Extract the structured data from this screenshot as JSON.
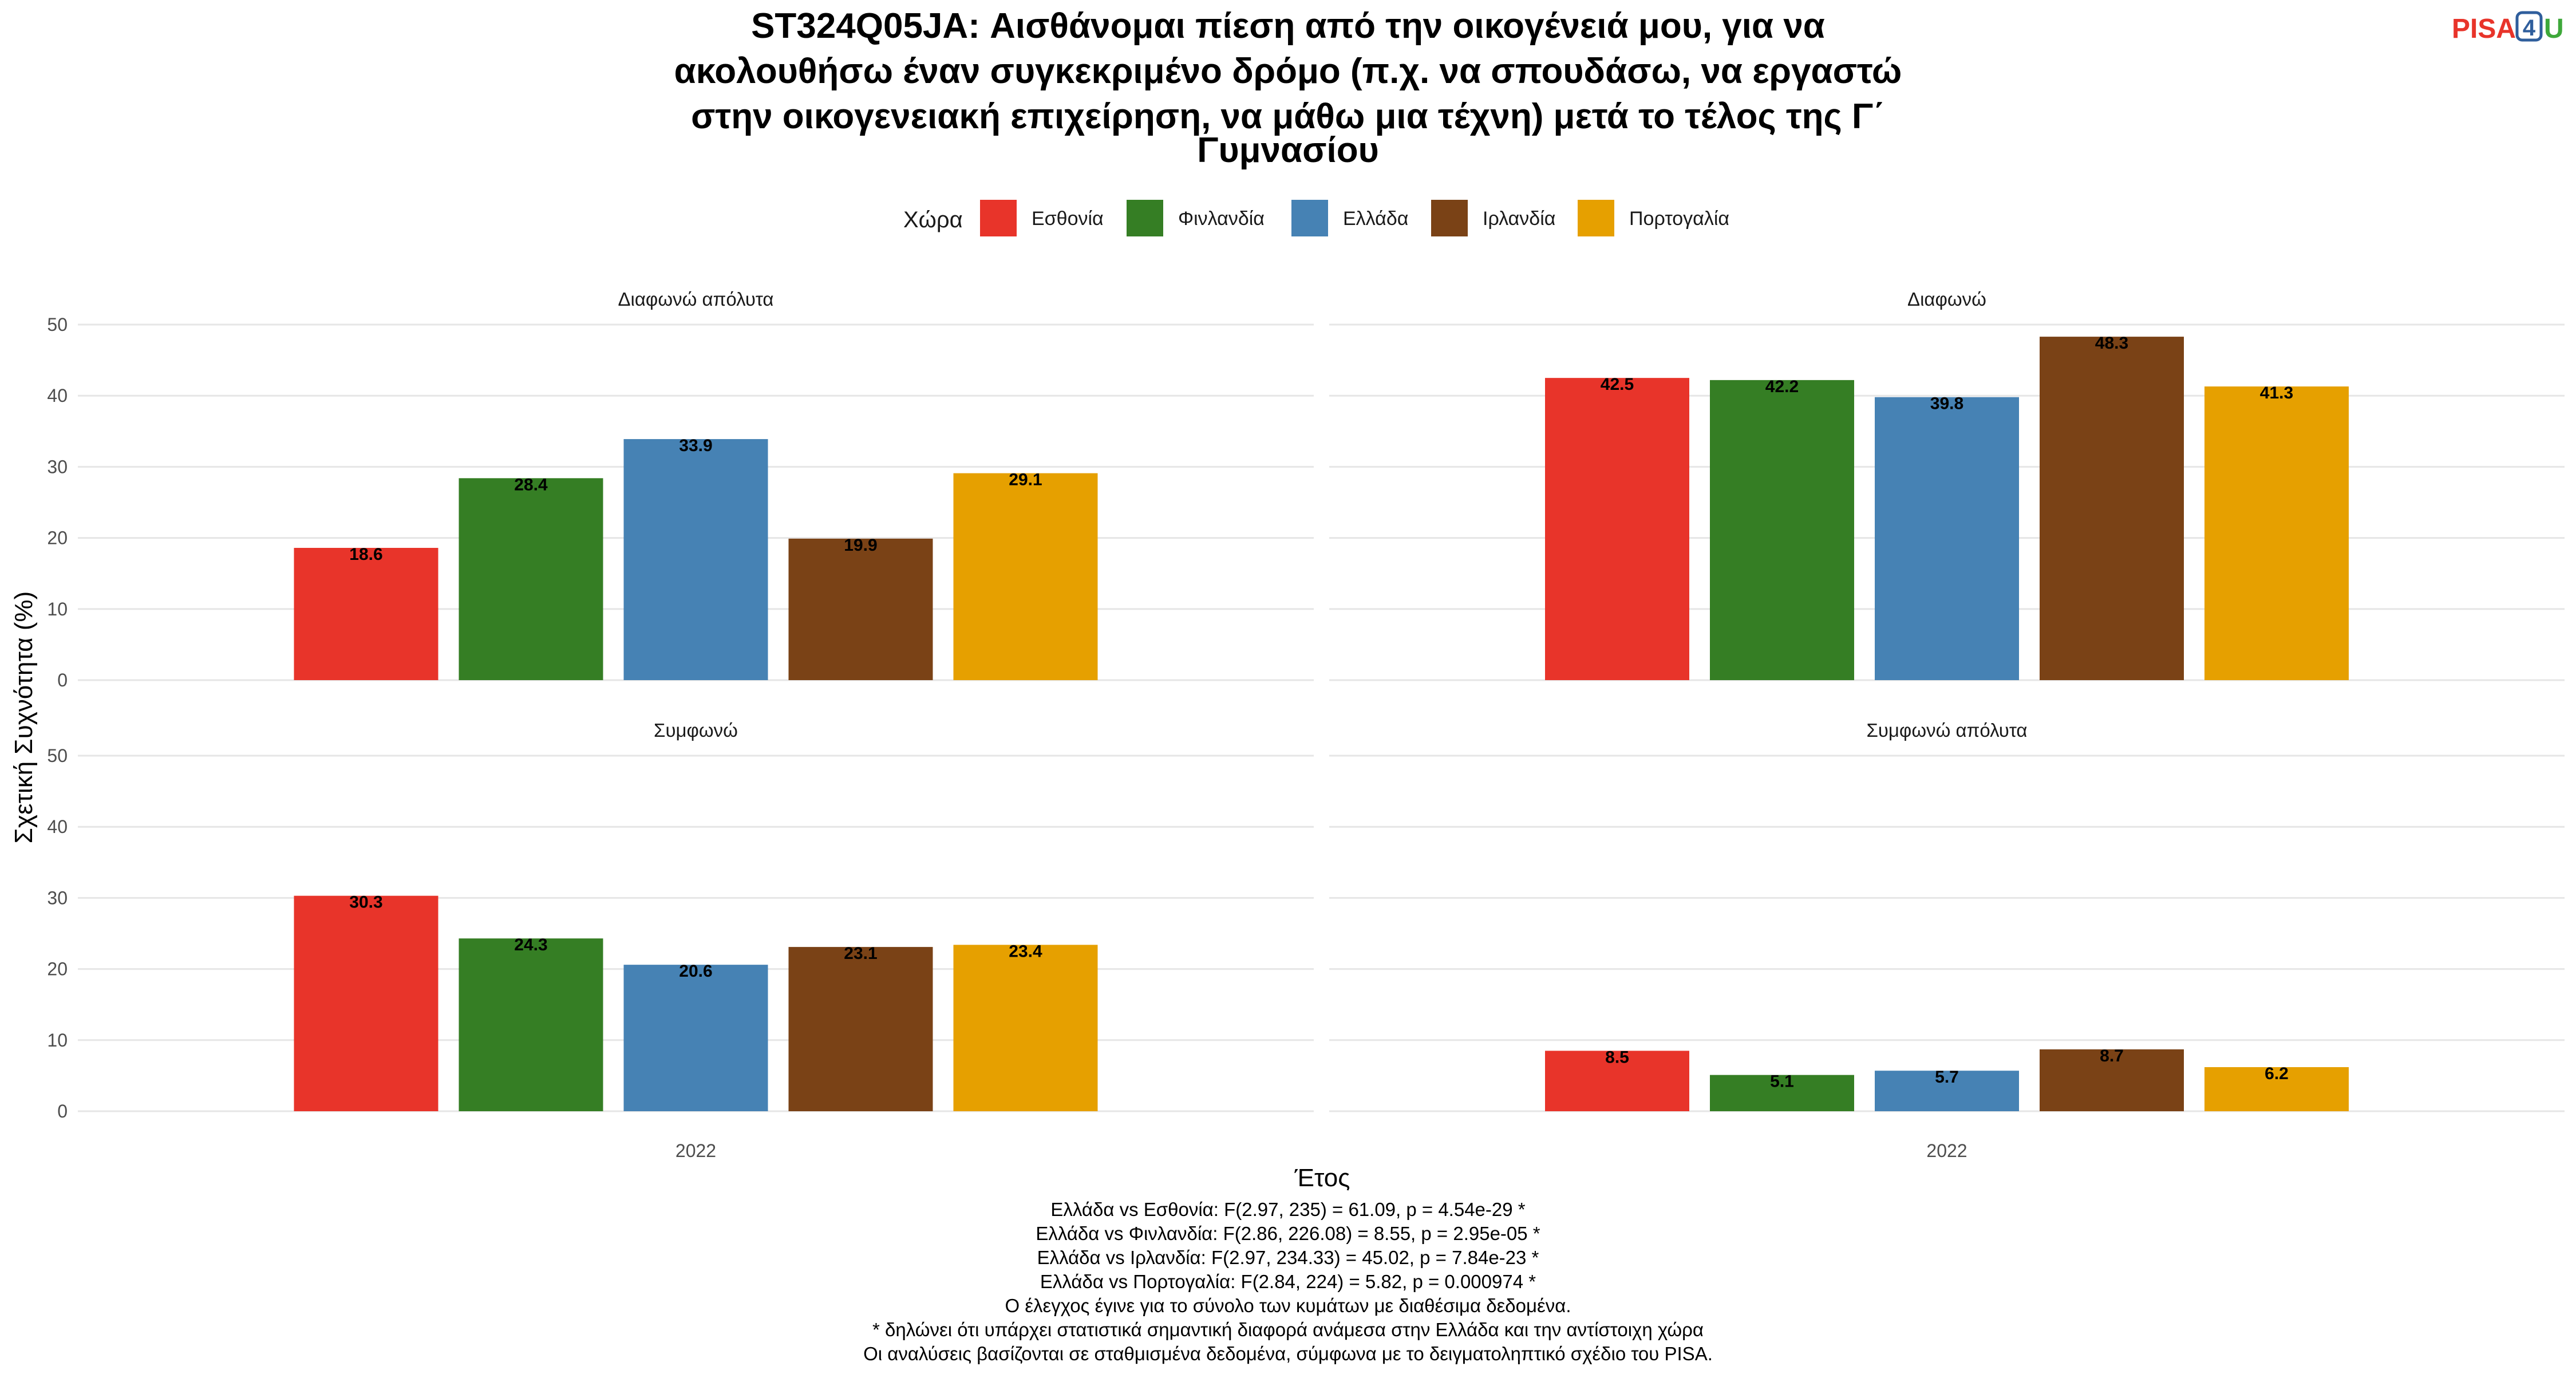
{
  "title_lines": [
    "ST324Q05JA: Αισθάνομαι πίεση από την οικογένειά μου, για να",
    "ακολουθήσω έναν συγκεκριμένο δρόμο (π.χ. να σπουδάσω, να εργαστώ",
    "στην οικογενειακή επιχείρηση, να μάθω μια τέχνη) μετά το τέλος της Γ΄",
    "Γυμνασίου"
  ],
  "logo": {
    "pisa": "PISA",
    "four": "4",
    "u": "U"
  },
  "legend": {
    "title": "Χώρα"
  },
  "chart_data": {
    "type": "bar",
    "facet_by": "response",
    "x_category": "2022",
    "xlabel": "Έτος",
    "ylabel": "Σχετική Συχνότητα (%)",
    "ylim": [
      0,
      50
    ],
    "yticks": [
      0,
      10,
      20,
      30,
      40,
      50
    ],
    "grid": true,
    "legend_position": "top",
    "series": [
      {
        "name": "Εσθονία",
        "color": "#e8342a"
      },
      {
        "name": "Φινλανδία",
        "color": "#357e24"
      },
      {
        "name": "Ελλάδα",
        "color": "#4682b4"
      },
      {
        "name": "Ιρλανδία",
        "color": "#7a4216"
      },
      {
        "name": "Πορτογαλία",
        "color": "#e6a000"
      }
    ],
    "panels": [
      {
        "label": "Διαφωνώ απόλυτα",
        "values": [
          18.6,
          28.4,
          33.9,
          19.9,
          29.1
        ]
      },
      {
        "label": "Διαφωνώ",
        "values": [
          42.5,
          42.2,
          39.8,
          48.3,
          41.3
        ]
      },
      {
        "label": "Συμφωνώ",
        "values": [
          30.3,
          24.3,
          20.6,
          23.1,
          23.4
        ]
      },
      {
        "label": "Συμφωνώ απόλυτα",
        "values": [
          8.5,
          5.1,
          5.7,
          8.7,
          6.2
        ]
      }
    ]
  },
  "caption_lines": [
    "Ελλάδα vs Εσθονία: F(2.97, 235) = 61.09, p = 4.54e-29 *",
    "Ελλάδα vs Φινλανδία: F(2.86, 226.08) = 8.55, p = 2.95e-05 *",
    "Ελλάδα vs Ιρλανδία: F(2.97, 234.33) = 45.02, p = 7.84e-23 *",
    "Ελλάδα vs Πορτογαλία: F(2.84, 224) = 5.82, p = 0.000974 *",
    "Ο έλεγχος έγινε για το σύνολο των κυμάτων με διαθέσιμα δεδομένα.",
    "* δηλώνει ότι υπάρχει στατιστικά σημαντική διαφορά ανάμεσα στην Ελλάδα και την αντίστοιχη χώρα",
    "Οι αναλύσεις βασίζονται σε σταθμισμένα δεδομένα, σύμφωνα με το δειγματοληπτικό σχέδιο του PISA."
  ]
}
